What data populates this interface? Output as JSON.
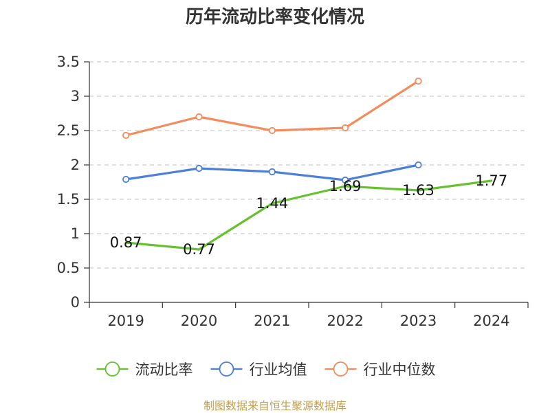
{
  "title": "历年流动比率变化情况",
  "source": "制图数据来自恒生聚源数据库",
  "chart_data": {
    "type": "line",
    "title": "历年流动比率变化情况",
    "categories": [
      "2019",
      "2020",
      "2021",
      "2022",
      "2023",
      "2024"
    ],
    "ylim": [
      0,
      3.5
    ],
    "yticks": [
      0,
      0.5,
      1,
      1.5,
      2,
      2.5,
      3,
      3.5
    ],
    "ytick_labels": [
      "0",
      "0.5",
      "1",
      "1.5",
      "2",
      "2.5",
      "3",
      "3.5"
    ],
    "grid": true,
    "legend_position": "bottom",
    "series": [
      {
        "name": "流动比率",
        "color": "#66c12e",
        "values": [
          0.87,
          0.77,
          1.44,
          1.69,
          1.63,
          1.77
        ],
        "labels": [
          "0.87",
          "0.77",
          "1.44",
          "1.69",
          "1.63",
          "1.77"
        ],
        "markers": false
      },
      {
        "name": "行业均值",
        "color": "#4b7fd8",
        "values": [
          1.79,
          1.95,
          1.9,
          1.78,
          2.0,
          null
        ],
        "markers": true
      },
      {
        "name": "行业中位数",
        "color": "#f28c5c",
        "values": [
          2.43,
          2.7,
          2.5,
          2.54,
          3.22,
          null
        ],
        "markers": true
      }
    ]
  }
}
